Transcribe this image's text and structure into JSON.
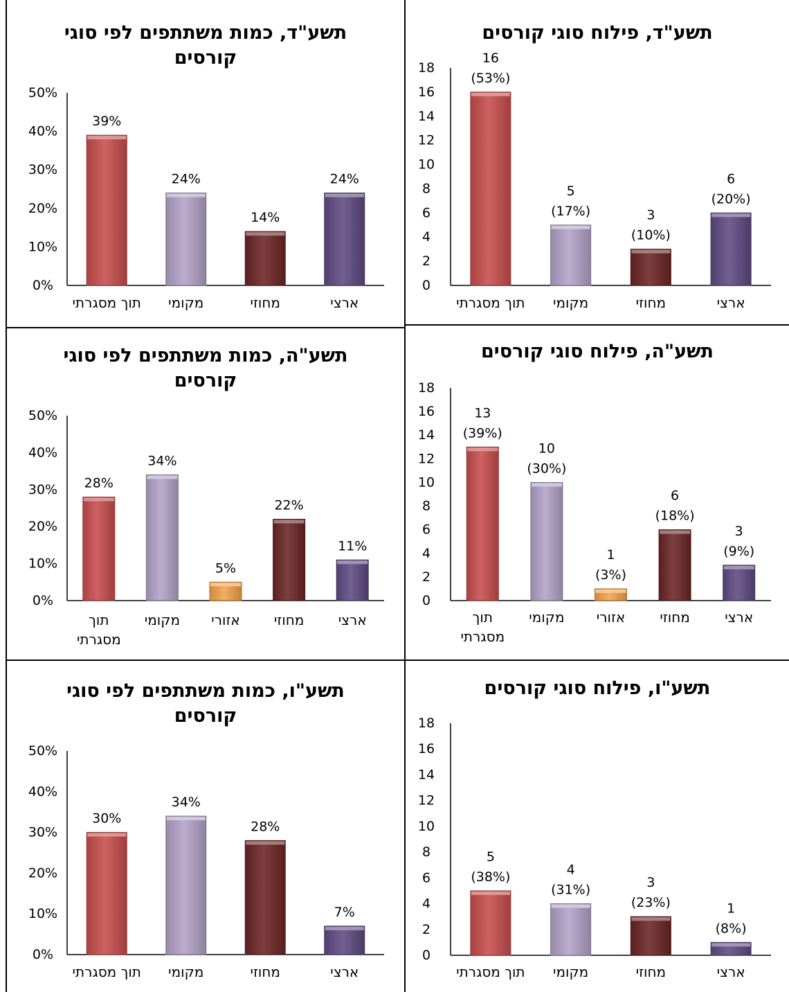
{
  "charts": [
    {
      "id": "p-d-dist",
      "title": "תשע\"ד, פילוח סוגי קורסים",
      "type": "bar",
      "categories": [
        "תוך מסגרתי",
        "מקומי",
        "מחוזי",
        "ארצי"
      ],
      "values": [
        16,
        5,
        3,
        6
      ],
      "value_labels": [
        [
          "16",
          "(53%)"
        ],
        [
          "5",
          "(17%)"
        ],
        [
          "3",
          "(10%)"
        ],
        [
          "6",
          "(20%)"
        ]
      ],
      "colors": [
        "#c94d4d",
        "#b3a2c7",
        "#6b2525",
        "#5f4a82"
      ],
      "ylim": [
        0,
        18
      ],
      "yticks": [
        "0",
        "2",
        "4",
        "6",
        "8",
        "10",
        "12",
        "14",
        "16",
        "18"
      ]
    },
    {
      "id": "p-d-part",
      "title": "תשע\"ד, כמות משתתפים לפי סוגי קורסים",
      "type": "bar",
      "categories": [
        "תוך מסגרתי",
        "מקומי",
        "מחוזי",
        "ארצי"
      ],
      "values": [
        39,
        24,
        14,
        24
      ],
      "value_labels": [
        [
          "39%"
        ],
        [
          "24%"
        ],
        [
          "14%"
        ],
        [
          "24%"
        ]
      ],
      "colors": [
        "#c94d4d",
        "#b3a2c7",
        "#6b2525",
        "#5f4a82"
      ],
      "ylim": [
        0,
        50
      ],
      "yticks": [
        "0%",
        "10%",
        "20%",
        "30%",
        "40%",
        "50%"
      ]
    },
    {
      "id": "p-h-dist",
      "title": "תשע\"ה, פילוח סוגי קורסים",
      "type": "bar",
      "categories": [
        "תוך מסגרתי",
        "מקומי",
        "אזורי",
        "מחוזי",
        "ארצי"
      ],
      "values": [
        13,
        10,
        1,
        6,
        3
      ],
      "value_labels": [
        [
          "13",
          "(39%)"
        ],
        [
          "10",
          "(30%)"
        ],
        [
          "1",
          "(3%)"
        ],
        [
          "6",
          "(18%)"
        ],
        [
          "3",
          "(9%)"
        ]
      ],
      "colors": [
        "#c94d4d",
        "#b3a2c7",
        "#f2a24b",
        "#6b2525",
        "#5f4a82"
      ],
      "ylim": [
        0,
        18
      ],
      "yticks": [
        "0",
        "2",
        "4",
        "6",
        "8",
        "10",
        "12",
        "14",
        "16",
        "18"
      ]
    },
    {
      "id": "p-h-part",
      "title": "תשע\"ה, כמות משתתפים לפי סוגי קורסים",
      "type": "bar",
      "categories": [
        "תוך מסגרתי",
        "מקומי",
        "אזורי",
        "מחוזי",
        "ארצי"
      ],
      "values": [
        28,
        34,
        5,
        22,
        11
      ],
      "value_labels": [
        [
          "28%"
        ],
        [
          "34%"
        ],
        [
          "5%"
        ],
        [
          "22%"
        ],
        [
          "11%"
        ]
      ],
      "colors": [
        "#c94d4d",
        "#b3a2c7",
        "#f2a24b",
        "#6b2525",
        "#5f4a82"
      ],
      "ylim": [
        0,
        50
      ],
      "yticks": [
        "0%",
        "10%",
        "20%",
        "30%",
        "40%",
        "50%"
      ]
    },
    {
      "id": "p-v-dist",
      "title": "תשע\"ו, פילוח סוגי קורסים",
      "type": "bar",
      "categories": [
        "תוך מסגרתי",
        "מקומי",
        "מחוזי",
        "ארצי"
      ],
      "values": [
        5,
        4,
        3,
        1
      ],
      "value_labels": [
        [
          "5",
          "(38%)"
        ],
        [
          "4",
          "(31%)"
        ],
        [
          "3",
          "(23%)"
        ],
        [
          "1",
          "(8%)"
        ]
      ],
      "colors": [
        "#c94d4d",
        "#b3a2c7",
        "#6b2525",
        "#5f4a82"
      ],
      "ylim": [
        0,
        18
      ],
      "yticks": [
        "0",
        "2",
        "4",
        "6",
        "8",
        "10",
        "12",
        "14",
        "16",
        "18"
      ]
    },
    {
      "id": "p-v-part",
      "title": "תשע\"ו, כמות משתתפים לפי סוגי קורסים",
      "type": "bar",
      "categories": [
        "תוך מסגרתי",
        "מקומי",
        "מחוזי",
        "ארצי"
      ],
      "values": [
        30,
        34,
        28,
        7
      ],
      "value_labels": [
        [
          "30%"
        ],
        [
          "34%"
        ],
        [
          "28%"
        ],
        [
          "7%"
        ]
      ],
      "colors": [
        "#c94d4d",
        "#b3a2c7",
        "#6b2525",
        "#5f4a82"
      ],
      "ylim": [
        0,
        50
      ],
      "yticks": [
        "0%",
        "10%",
        "20%",
        "30%",
        "40%",
        "50%"
      ]
    }
  ]
}
